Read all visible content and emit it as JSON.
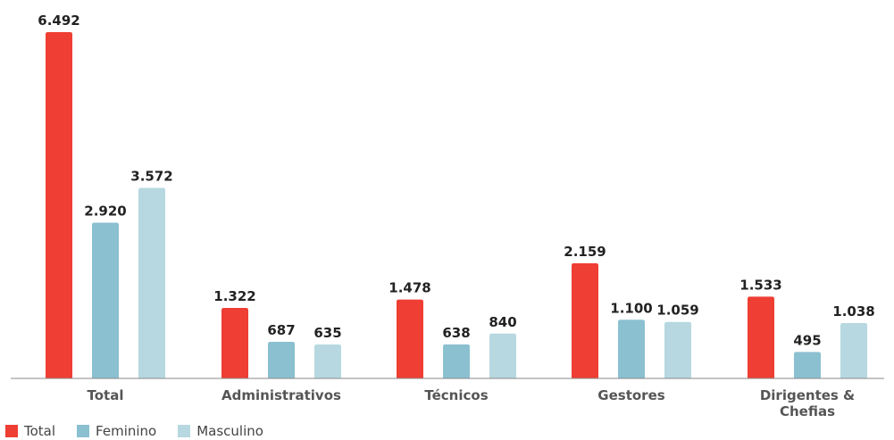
{
  "chart_data": {
    "type": "bar",
    "categories": [
      "Total",
      "Administrativos",
      "Técnicos",
      "Gestores",
      "Dirigentes &\nChefias"
    ],
    "series": [
      {
        "name": "Total",
        "color": "#EF3E33",
        "values": [
          6492,
          1322,
          1478,
          2159,
          1533
        ],
        "labels": [
          "6.492",
          "1.322",
          "1.478",
          "2.159",
          "1.533"
        ]
      },
      {
        "name": "Feminino",
        "color": "#8BC0D0",
        "values": [
          2920,
          687,
          638,
          1100,
          495
        ],
        "labels": [
          "2.920",
          "687",
          "638",
          "1.100",
          "495"
        ]
      },
      {
        "name": "Masculino",
        "color": "#B7D8E0",
        "values": [
          3572,
          635,
          840,
          1059,
          1038
        ],
        "labels": [
          "3.572",
          "635",
          "840",
          "1.059",
          "1.038"
        ]
      }
    ],
    "title": "",
    "xlabel": "",
    "ylabel": "",
    "ylim": [
      0,
      6492
    ],
    "grid": false,
    "legend_position": "bottom-left"
  }
}
